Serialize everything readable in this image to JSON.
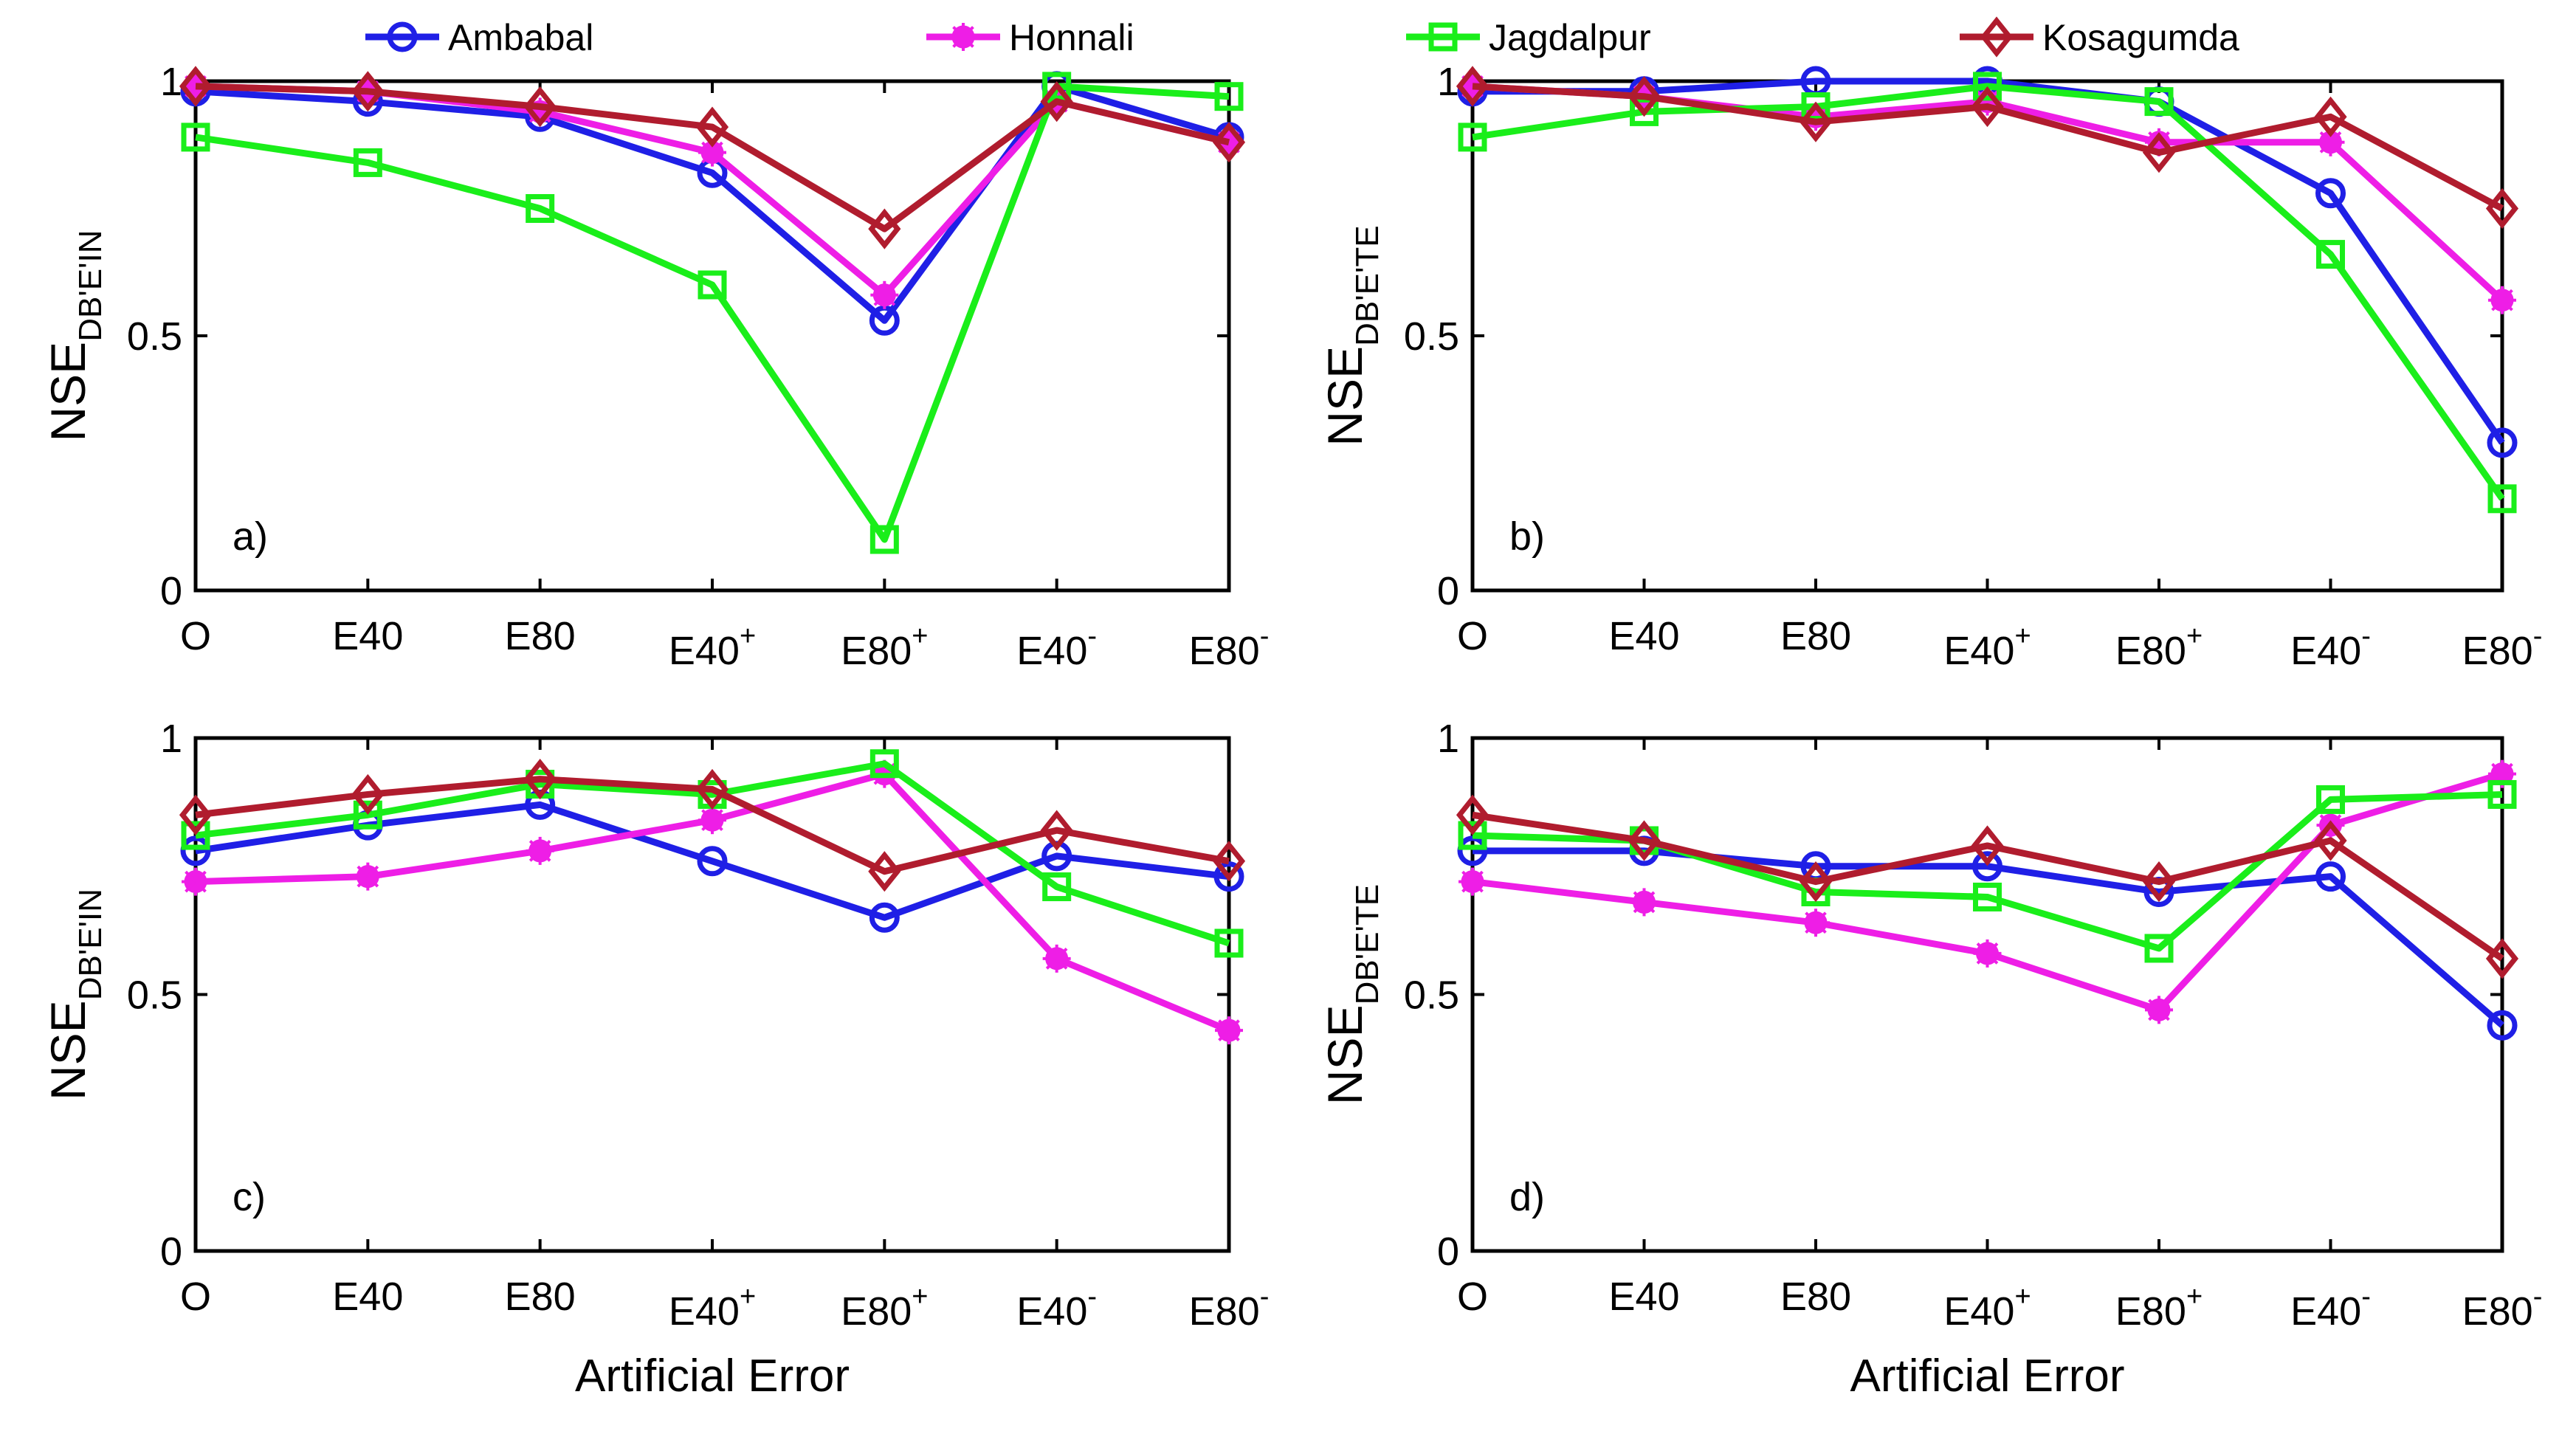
{
  "colors": {
    "Ambabal": "#1f1fe6",
    "Honnali": "#ee1ee6",
    "Jagdalpur": "#1aee1a",
    "Kosagumda": "#b01c2e",
    "axis": "#000000"
  },
  "legend": [
    {
      "name": "Ambabal",
      "marker": "circle-icon"
    },
    {
      "name": "Honnali",
      "marker": "star-icon"
    },
    {
      "name": "Jagdalpur",
      "marker": "square-icon"
    },
    {
      "name": "Kosagumda",
      "marker": "diamond-icon"
    }
  ],
  "chart_data": [
    {
      "type": "line",
      "panel_label": "a)",
      "ylabel_main": "NSE",
      "ylabel_sub": "DB'E'IN",
      "xlabel": "",
      "ylim": [
        0,
        1
      ],
      "yticks": [
        0,
        0.5,
        1
      ],
      "ytick_labels": [
        "0",
        "0.5",
        "1"
      ],
      "categories": [
        {
          "base": "O",
          "sup": ""
        },
        {
          "base": "E40",
          "sup": ""
        },
        {
          "base": "E80",
          "sup": ""
        },
        {
          "base": "E40",
          "sup": "+"
        },
        {
          "base": "E80",
          "sup": "+"
        },
        {
          "base": "E40",
          "sup": "-"
        },
        {
          "base": "E80",
          "sup": "-"
        }
      ],
      "series": [
        {
          "name": "Ambabal",
          "values": [
            0.98,
            0.96,
            0.93,
            0.82,
            0.53,
            0.99,
            0.89
          ]
        },
        {
          "name": "Honnali",
          "values": [
            0.99,
            0.98,
            0.94,
            0.86,
            0.58,
            0.96,
            0.88
          ]
        },
        {
          "name": "Jagdalpur",
          "values": [
            0.89,
            0.84,
            0.75,
            0.6,
            0.1,
            0.99,
            0.97
          ]
        },
        {
          "name": "Kosagumda",
          "values": [
            0.99,
            0.98,
            0.95,
            0.91,
            0.71,
            0.96,
            0.88
          ]
        }
      ]
    },
    {
      "type": "line",
      "panel_label": "b)",
      "ylabel_main": "NSE",
      "ylabel_sub": "DB'E'TE",
      "xlabel": "",
      "ylim": [
        0,
        1
      ],
      "yticks": [
        0,
        0.5,
        1
      ],
      "ytick_labels": [
        "0",
        "0.5",
        "1"
      ],
      "categories": [
        {
          "base": "O",
          "sup": ""
        },
        {
          "base": "E40",
          "sup": ""
        },
        {
          "base": "E80",
          "sup": ""
        },
        {
          "base": "E40",
          "sup": "+"
        },
        {
          "base": "E80",
          "sup": "+"
        },
        {
          "base": "E40",
          "sup": "-"
        },
        {
          "base": "E80",
          "sup": "-"
        }
      ],
      "series": [
        {
          "name": "Ambabal",
          "values": [
            0.98,
            0.98,
            1.0,
            1.0,
            0.96,
            0.78,
            0.29
          ]
        },
        {
          "name": "Honnali",
          "values": [
            0.99,
            0.97,
            0.93,
            0.96,
            0.88,
            0.88,
            0.57
          ]
        },
        {
          "name": "Jagdalpur",
          "values": [
            0.89,
            0.94,
            0.95,
            0.99,
            0.96,
            0.66,
            0.18
          ]
        },
        {
          "name": "Kosagumda",
          "values": [
            0.99,
            0.97,
            0.92,
            0.95,
            0.86,
            0.93,
            0.75
          ]
        }
      ]
    },
    {
      "type": "line",
      "panel_label": "c)",
      "ylabel_main": "NSE",
      "ylabel_sub": "DB'E'IN",
      "xlabel": "Artificial Error",
      "ylim": [
        0,
        1
      ],
      "yticks": [
        0,
        0.5,
        1
      ],
      "ytick_labels": [
        "0",
        "0.5",
        "1"
      ],
      "categories": [
        {
          "base": "O",
          "sup": ""
        },
        {
          "base": "E40",
          "sup": ""
        },
        {
          "base": "E80",
          "sup": ""
        },
        {
          "base": "E40",
          "sup": "+"
        },
        {
          "base": "E80",
          "sup": "+"
        },
        {
          "base": "E40",
          "sup": "-"
        },
        {
          "base": "E80",
          "sup": "-"
        }
      ],
      "series": [
        {
          "name": "Ambabal",
          "values": [
            0.78,
            0.83,
            0.87,
            0.76,
            0.65,
            0.77,
            0.73
          ]
        },
        {
          "name": "Honnali",
          "values": [
            0.72,
            0.73,
            0.78,
            0.84,
            0.93,
            0.57,
            0.43
          ]
        },
        {
          "name": "Jagdalpur",
          "values": [
            0.81,
            0.85,
            0.91,
            0.89,
            0.95,
            0.71,
            0.6
          ]
        },
        {
          "name": "Kosagumda",
          "values": [
            0.85,
            0.89,
            0.92,
            0.9,
            0.74,
            0.82,
            0.76
          ]
        }
      ]
    },
    {
      "type": "line",
      "panel_label": "d)",
      "ylabel_main": "NSE",
      "ylabel_sub": "DB'E'TE",
      "xlabel": "Artificial Error",
      "ylim": [
        0,
        1
      ],
      "yticks": [
        0,
        0.5,
        1
      ],
      "ytick_labels": [
        "0",
        "0.5",
        "1"
      ],
      "categories": [
        {
          "base": "O",
          "sup": ""
        },
        {
          "base": "E40",
          "sup": ""
        },
        {
          "base": "E80",
          "sup": ""
        },
        {
          "base": "E40",
          "sup": "+"
        },
        {
          "base": "E80",
          "sup": "+"
        },
        {
          "base": "E40",
          "sup": "-"
        },
        {
          "base": "E80",
          "sup": "-"
        }
      ],
      "series": [
        {
          "name": "Ambabal",
          "values": [
            0.78,
            0.78,
            0.75,
            0.75,
            0.7,
            0.73,
            0.44
          ]
        },
        {
          "name": "Honnali",
          "values": [
            0.72,
            0.68,
            0.64,
            0.58,
            0.47,
            0.83,
            0.93
          ]
        },
        {
          "name": "Jagdalpur",
          "values": [
            0.81,
            0.8,
            0.7,
            0.69,
            0.59,
            0.88,
            0.89
          ]
        },
        {
          "name": "Kosagumda",
          "values": [
            0.85,
            0.8,
            0.72,
            0.79,
            0.72,
            0.8,
            0.57
          ]
        }
      ]
    }
  ]
}
